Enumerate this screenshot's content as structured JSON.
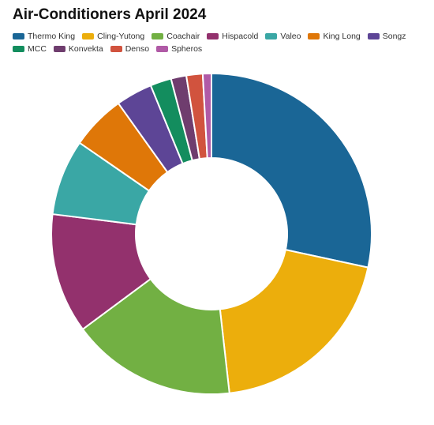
{
  "chart_data": {
    "type": "pie",
    "title": "Air-Conditioners April 2024",
    "donut": true,
    "legend_position": "top-left",
    "categories": [
      "Thermo King",
      "Cling-Yutong",
      "Coachair",
      "Hispacold",
      "Valeo",
      "King Long",
      "Songz",
      "MCC",
      "Konvekta",
      "Denso",
      "Spheros"
    ],
    "values": [
      29.3,
      20.5,
      17.2,
      12.5,
      7.9,
      5.7,
      3.8,
      2.2,
      1.6,
      1.7,
      0.9
    ],
    "colors": [
      "#1a6696",
      "#ecae0c",
      "#72b043",
      "#93316d",
      "#3aa7a5",
      "#df7708",
      "#5d4596",
      "#138d5e",
      "#6f3d6e",
      "#d1533e",
      "#b05aa6"
    ]
  }
}
